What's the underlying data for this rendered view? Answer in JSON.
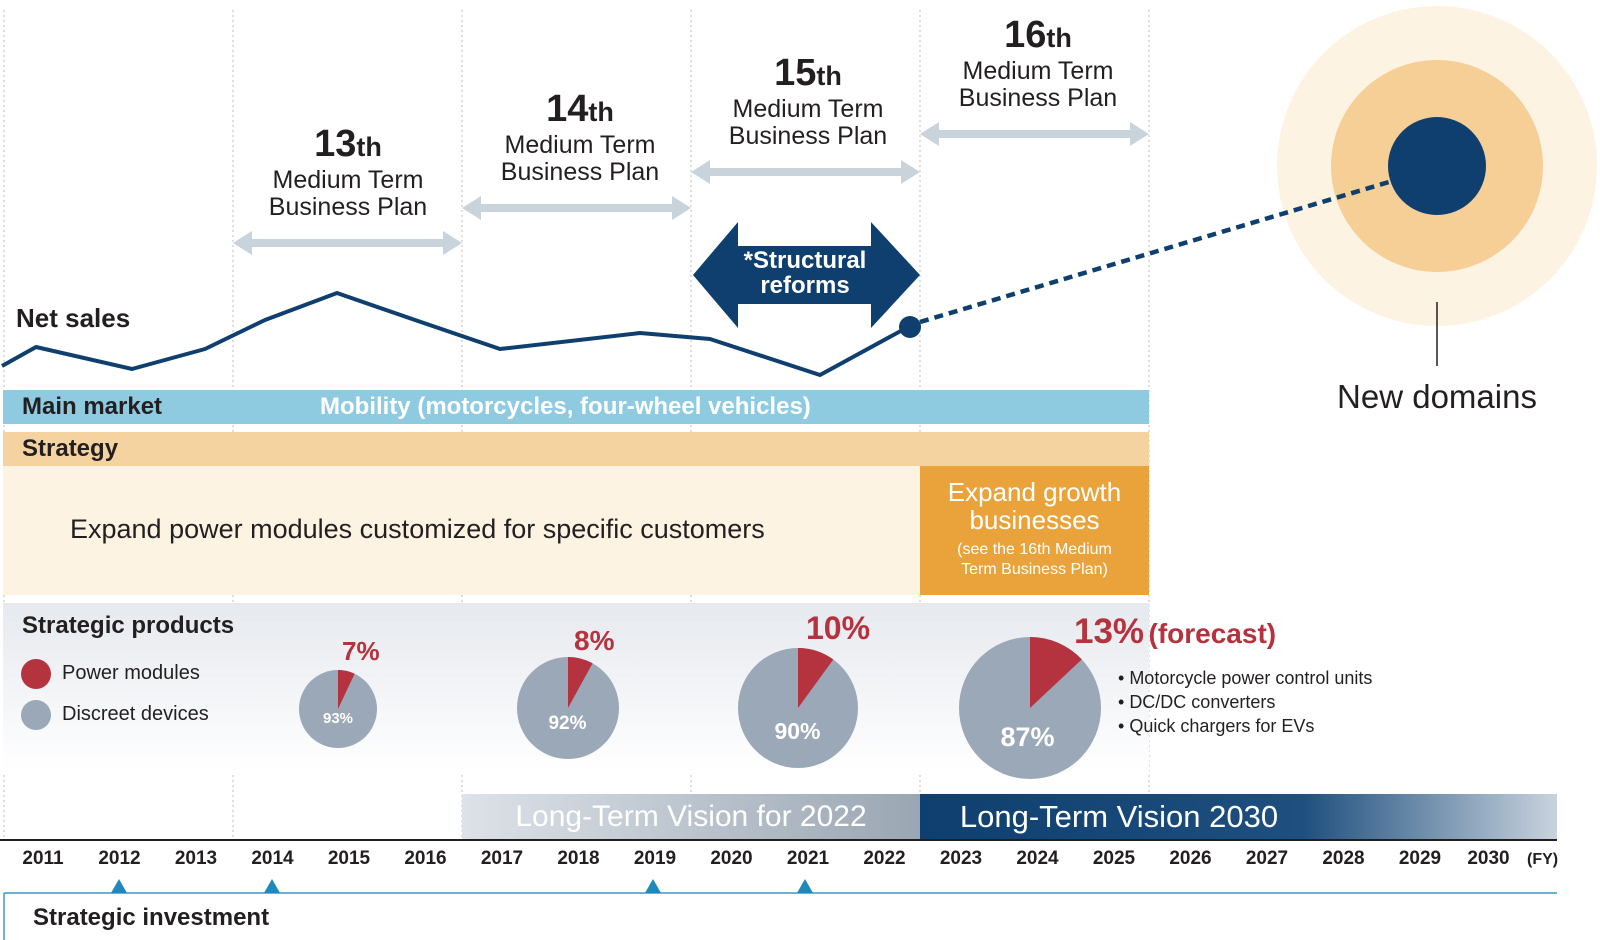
{
  "plans": [
    {
      "number": "13",
      "ordinal": "th",
      "label1": "Medium Term",
      "label2": "Business Plan"
    },
    {
      "number": "14",
      "ordinal": "th",
      "label1": "Medium Term",
      "label2": "Business Plan"
    },
    {
      "number": "15",
      "ordinal": "th",
      "label1": "Medium Term",
      "label2": "Business Plan"
    },
    {
      "number": "16",
      "ordinal": "th",
      "label1": "Medium Term",
      "label2": "Business Plan"
    }
  ],
  "structural_reforms": {
    "line1": "*Structural",
    "line2": "reforms"
  },
  "net_sales_label": "Net sales",
  "new_domains_label": "New domains",
  "main_market": {
    "label": "Main market",
    "value": "Mobility (motorcycles, four-wheel vehicles)"
  },
  "strategy": {
    "label": "Strategy",
    "text": "Expand power modules customized for specific customers",
    "growth_title1": "Expand growth",
    "growth_title2": "businesses",
    "growth_note1": "(see the 16th Medium",
    "growth_note2": "Term Business Plan)"
  },
  "strategic_products": {
    "title": "Strategic products",
    "legend": [
      {
        "label": "Power modules",
        "color": "#b5323f"
      },
      {
        "label": "Discreet devices",
        "color": "#9aa8b7"
      }
    ],
    "pies": [
      {
        "power": "7%",
        "discrete": "93%",
        "power_share": 7
      },
      {
        "power": "8%",
        "discrete": "92%",
        "power_share": 8
      },
      {
        "power": "10%",
        "discrete": "90%",
        "power_share": 10
      },
      {
        "power": "13%",
        "power_suffix": "(forecast)",
        "discrete": "87%",
        "power_share": 13
      }
    ],
    "bullets": [
      "Motorcycle power control units",
      "DC/DC converters",
      "Quick chargers for EVs"
    ]
  },
  "visions": {
    "v2022": "Long-Term Vision for 2022",
    "v2030": "Long-Term Vision 2030"
  },
  "years": [
    "2011",
    "2012",
    "2013",
    "2014",
    "2015",
    "2016",
    "2017",
    "2018",
    "2019",
    "2020",
    "2021",
    "2022",
    "2023",
    "2024",
    "2025",
    "2026",
    "2027",
    "2028",
    "2029",
    "2030"
  ],
  "fy_label": "(FY)",
  "strategic_investment": {
    "label": "Strategic investment",
    "years": [
      "2012",
      "2014",
      "2019",
      "2021"
    ]
  },
  "colors": {
    "navy": "#0e3f6e",
    "sky": "#8ecae0",
    "peach": "#f5d3a0",
    "cream": "#fdf3e3",
    "orange": "#eaa33a",
    "red": "#b5323f",
    "gray": "#9aa8b7"
  }
}
